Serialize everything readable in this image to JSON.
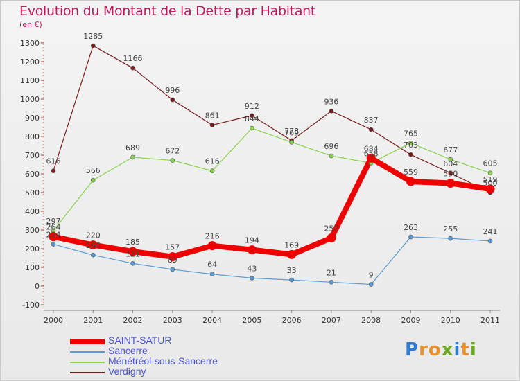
{
  "title": "Evolution du Montant de la Dette par Habitant",
  "unit": "(en €)",
  "logo": [
    {
      "ch": "P",
      "color": "#2e7bd6"
    },
    {
      "ch": "r",
      "color": "#e8902a"
    },
    {
      "ch": "o",
      "color": "#e8902a"
    },
    {
      "ch": "x",
      "color": "#6aa821"
    },
    {
      "ch": "i",
      "color": "#2e7bd6"
    },
    {
      "ch": "t",
      "color": "#e8902a"
    },
    {
      "ch": "i",
      "color": "#6aa821"
    }
  ],
  "chart_data": {
    "type": "line",
    "title": "Evolution du Montant de la Dette par Habitant",
    "ylabel": "(en €)",
    "x": [
      "2000",
      "2001",
      "2002",
      "2003",
      "2004",
      "2005",
      "2006",
      "2007",
      "2008",
      "2009",
      "2010",
      "2011"
    ],
    "ylim": [
      -100,
      1300
    ],
    "yticks": [
      -100,
      0,
      100,
      200,
      300,
      400,
      500,
      600,
      700,
      800,
      900,
      1000,
      1100,
      1200,
      1300
    ],
    "grid": false,
    "legend_position": "bottom",
    "series": [
      {
        "name": "SAINT-SATUR",
        "color": "#ee0000",
        "width": 8,
        "values": [
          264,
          220,
          185,
          157,
          216,
          194,
          169,
          257,
          684,
          559,
          550,
          519
        ]
      },
      {
        "name": "Sancerre",
        "color": "#5b9bd5",
        "width": 1.2,
        "values": [
          224,
          166,
          121,
          89,
          64,
          43,
          33,
          21,
          9,
          263,
          255,
          241
        ]
      },
      {
        "name": "Ménétréol-sous-Sancerre",
        "color": "#88d24c",
        "width": 1.2,
        "values": [
          297,
          566,
          689,
          672,
          616,
          844,
          769,
          696,
          658,
          765,
          677,
          605
        ]
      },
      {
        "name": "Verdigny",
        "color": "#7b1c1c",
        "width": 1.2,
        "values": [
          616,
          1285,
          1166,
          996,
          861,
          912,
          778,
          936,
          837,
          703,
          604,
          500
        ]
      }
    ]
  }
}
